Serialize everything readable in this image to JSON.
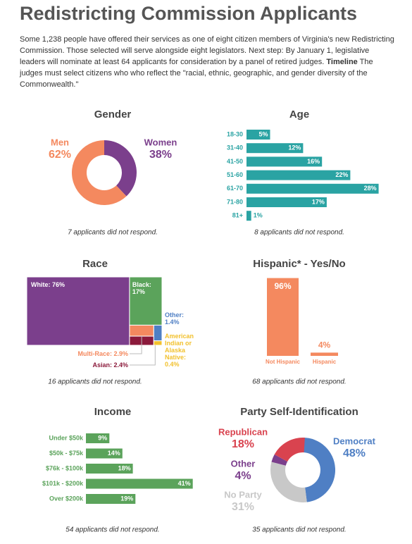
{
  "title": "Redistricting Commission Applicants",
  "intro": {
    "text": "Some 1,238 people have offered their services as one of eight citizen members of Virginia's new Redistricting Commission. Those selected will serve alongside eight legislators. Next step: By January 1, legislative leaders will nominate at least 64 applicants for consideration by a panel of retired judges.",
    "link": "Timeline",
    "rest": "The judges must select citizens who who reflect the \"racial, ethnic, geographic, and gender diversity of the Commonwealth.\""
  },
  "chart_data": [
    {
      "type": "pie",
      "donut": true,
      "title": "Gender",
      "categories": [
        "Women",
        "Men"
      ],
      "values": [
        38,
        62
      ],
      "value_labels": [
        "38%",
        "62%"
      ],
      "colors": [
        "#7b3f8c",
        "#f4895f"
      ],
      "note": "7 applicants did not respond."
    },
    {
      "type": "bar",
      "orientation": "horizontal",
      "title": "Age",
      "categories": [
        "18-30",
        "31-40",
        "41-50",
        "51-60",
        "61-70",
        "71-80",
        "81+"
      ],
      "values": [
        5,
        12,
        16,
        22,
        28,
        17,
        1
      ],
      "value_labels": [
        "5%",
        "12%",
        "16%",
        "22%",
        "28%",
        "17%",
        "1%"
      ],
      "color": "#2aa3a3",
      "note": "8 applicants did not respond."
    },
    {
      "type": "treemap",
      "title": "Race",
      "categories": [
        "White",
        "Black",
        "Multi-Race",
        "Asian",
        "Other",
        "American Indian or Alaska Native"
      ],
      "values": [
        76,
        17,
        2.9,
        2.4,
        1.4,
        0.4
      ],
      "value_labels": [
        "White: 76%",
        "Black: 17%",
        "Multi-Race: 2.9%",
        "Asian: 2.4%",
        "Other: 1.4%",
        "American Indian or Alaska Native: 0.4%"
      ],
      "colors": [
        "#7b3f8c",
        "#5ba35b",
        "#f4895f",
        "#8b1a3b",
        "#4f7fc4",
        "#f2c12e"
      ],
      "note": "16 applicants did not respond."
    },
    {
      "type": "bar",
      "orientation": "vertical",
      "title": "Hispanic* - Yes/No",
      "categories": [
        "Not Hispanic",
        "Hispanic"
      ],
      "values": [
        96,
        4
      ],
      "value_labels": [
        "96%",
        "4%"
      ],
      "color": "#f4895f",
      "note": "68 applicants did not respond."
    },
    {
      "type": "bar",
      "orientation": "horizontal",
      "title": "Income",
      "categories": [
        "Under $50k",
        "$50k - $75k",
        "$76k - $100k",
        "$101k - $200k",
        "Over $200k"
      ],
      "values": [
        9,
        14,
        18,
        41,
        19
      ],
      "value_labels": [
        "9%",
        "14%",
        "18%",
        "41%",
        "19%"
      ],
      "color": "#5ba35b",
      "note": "54 applicants did not respond."
    },
    {
      "type": "pie",
      "donut": true,
      "title": "Party Self-Identification",
      "categories": [
        "Democrat",
        "No Party",
        "Other",
        "Republican"
      ],
      "values": [
        48,
        31,
        4,
        18
      ],
      "value_labels": [
        "48%",
        "31%",
        "4%",
        "18%"
      ],
      "colors": [
        "#4f7fc4",
        "#c8c8c8",
        "#7b3f8c",
        "#d9434f"
      ],
      "note": "35 applicants did not respond."
    }
  ]
}
